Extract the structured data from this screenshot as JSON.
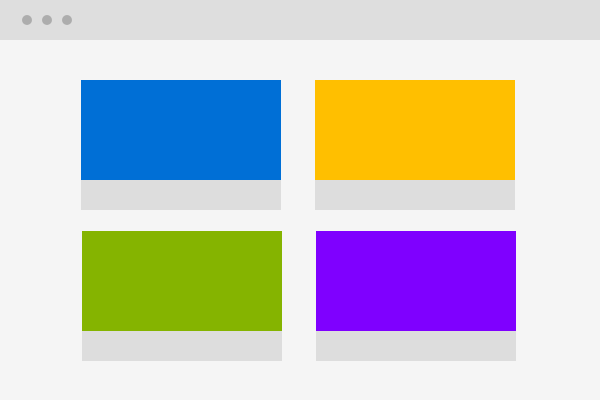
{
  "window": {
    "controls": [
      {
        "icon": "window-control-dot-icon",
        "color": "#adadad"
      },
      {
        "icon": "window-control-dot-icon",
        "color": "#adadad"
      },
      {
        "icon": "window-control-dot-icon",
        "color": "#adadad"
      }
    ],
    "titlebar_color": "#dedede",
    "background_color": "#f5f5f5"
  },
  "cards": [
    {
      "image_color": "#006fd6",
      "footer_color": "#dddddd"
    },
    {
      "image_color": "#ffbf00",
      "footer_color": "#dddddd"
    },
    {
      "image_color": "#85b400",
      "footer_color": "#dddddd"
    },
    {
      "image_color": "#7f00ff",
      "footer_color": "#dddddd"
    }
  ]
}
